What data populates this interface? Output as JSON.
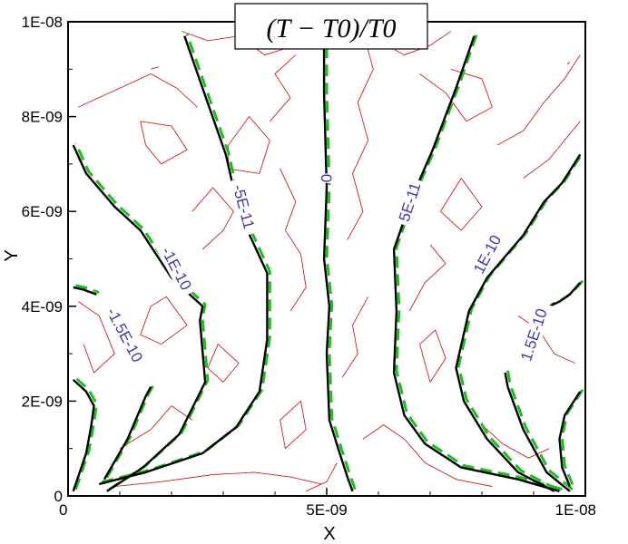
{
  "chart_data": {
    "type": "contour",
    "title": "(T − T0)/T0",
    "xlabel": "X",
    "ylabel": "Y",
    "xlim": [
      0,
      1e-08
    ],
    "ylim": [
      0,
      1e-08
    ],
    "x_ticks": [
      "0",
      "5E-09",
      "1E-08"
    ],
    "y_ticks": [
      "0",
      "2E-09",
      "4E-09",
      "6E-09",
      "8E-09",
      "1E-08"
    ],
    "grid": false,
    "series": [
      {
        "style": "black-solid",
        "color": "#000000"
      },
      {
        "style": "green-dashed",
        "color": "#22bb22"
      },
      {
        "style": "red-thin",
        "color": "#cc2020"
      }
    ],
    "contour_labels": [
      {
        "text": "-1.5E-10",
        "x": 1.1e-09,
        "y": 3.4e-09,
        "angle": 62
      },
      {
        "text": "-1E-10",
        "x": 2.1e-09,
        "y": 4.8e-09,
        "angle": 62
      },
      {
        "text": "-5E-11",
        "x": 3.4e-09,
        "y": 6.1e-09,
        "angle": 75
      },
      {
        "text": "0",
        "x": 5e-09,
        "y": 6.7e-09,
        "angle": 90
      },
      {
        "text": "5E-11",
        "x": 6.6e-09,
        "y": 6.2e-09,
        "angle": -72
      },
      {
        "text": "1E-10",
        "x": 8.1e-09,
        "y": 5.1e-09,
        "angle": -62
      },
      {
        "text": "1.5E-10",
        "x": 9e-09,
        "y": 3.4e-09,
        "angle": -72
      }
    ],
    "contours": [
      {
        "level": "-1.5E-10",
        "points": [
          [
            1e-10,
            1e-10
          ],
          [
            3.5e-10,
            9e-10
          ],
          [
            4.5e-10,
            1.5e-09
          ],
          [
            5e-10,
            1.9e-09
          ],
          [
            3.5e-10,
            2.2e-09
          ],
          [
            1e-10,
            2.45e-09
          ]
        ]
      },
      {
        "level": "-1.5E-10",
        "points": [
          [
            7e-10,
            3.5e-10
          ],
          [
            1.15e-09,
            1.2e-09
          ],
          [
            1.5e-09,
            2.1e-09
          ],
          [
            1.6e-09,
            2.3e-09
          ]
        ]
      },
      {
        "level": "-1E-10",
        "points": [
          [
            7.5e-10,
            1e-10
          ],
          [
            1.45e-09,
            6e-10
          ],
          [
            2.15e-09,
            1.3e-09
          ],
          [
            2.65e-09,
            2.4e-09
          ],
          [
            2.55e-09,
            3.7e-09
          ],
          [
            2.6e-09,
            4e-09
          ],
          [
            2e-09,
            4.6e-09
          ],
          [
            1.4e-09,
            5.6e-09
          ],
          [
            9e-10,
            6.1e-09
          ],
          [
            3.5e-10,
            6.8e-09
          ],
          [
            1e-10,
            7.4e-09
          ]
        ]
      },
      {
        "level": "-1E-10",
        "points": [
          [
            1e-10,
            4.4e-09
          ],
          [
            3e-10,
            4.35e-09
          ],
          [
            5.5e-10,
            4.25e-09
          ]
        ]
      },
      {
        "level": "-5E-11",
        "points": [
          [
            6e-10,
            2.5e-10
          ],
          [
            1.5e-09,
            5e-10
          ],
          [
            2.6e-09,
            9e-10
          ],
          [
            3.25e-09,
            1.45e-09
          ],
          [
            3.7e-09,
            2.2e-09
          ],
          [
            3.85e-09,
            3.3e-09
          ],
          [
            3.85e-09,
            4.7e-09
          ],
          [
            3.3e-09,
            6e-09
          ],
          [
            3.05e-09,
            7.2e-09
          ],
          [
            2.6e-09,
            8.6e-09
          ],
          [
            2.25e-09,
            9.7e-09
          ]
        ]
      },
      {
        "level": "0",
        "points": [
          [
            5.5e-09,
            1e-10
          ],
          [
            5.4e-09,
            4e-10
          ],
          [
            5.25e-09,
            9e-10
          ],
          [
            5.05e-09,
            1.6e-09
          ],
          [
            5e-09,
            3e-09
          ],
          [
            5.05e-09,
            4e-09
          ],
          [
            4.95e-09,
            5e-09
          ],
          [
            5e-09,
            6.5e-09
          ],
          [
            4.95e-09,
            8.5e-09
          ],
          [
            4.95e-09,
            9.5e-09
          ]
        ]
      },
      {
        "level": "5E-11",
        "points": [
          [
            9.5e-09,
            1e-10
          ],
          [
            8.7e-09,
            3.5e-10
          ],
          [
            7.6e-09,
            6e-10
          ],
          [
            6.9e-09,
            1.1e-09
          ],
          [
            6.5e-09,
            1.7e-09
          ],
          [
            6.3e-09,
            2.6e-09
          ],
          [
            6.35e-09,
            3.9e-09
          ],
          [
            6.3e-09,
            5.2e-09
          ],
          [
            6.65e-09,
            6.3e-09
          ],
          [
            7.05e-09,
            7.3e-09
          ],
          [
            7.5e-09,
            8.6e-09
          ],
          [
            7.85e-09,
            9.7e-09
          ]
        ]
      },
      {
        "level": "1E-10",
        "points": [
          [
            9.4e-09,
            1e-10
          ],
          [
            8.7e-09,
            5e-10
          ],
          [
            8.1e-09,
            1.2e-09
          ],
          [
            7.65e-09,
            2e-09
          ],
          [
            7.5e-09,
            2.7e-09
          ],
          [
            7.75e-09,
            3.9e-09
          ],
          [
            8.1e-09,
            4.6e-09
          ],
          [
            8.8e-09,
            5.5e-09
          ],
          [
            9.2e-09,
            6.2e-09
          ],
          [
            9.55e-09,
            6.6e-09
          ],
          [
            9.9e-09,
            7.2e-09
          ]
        ]
      },
      {
        "level": "1E-10",
        "points": [
          [
            9.9e-09,
            4.5e-09
          ],
          [
            9.7e-09,
            4.25e-09
          ],
          [
            9.5e-09,
            4.1e-09
          ],
          [
            9.3e-09,
            4e-09
          ]
        ]
      },
      {
        "level": "1.5E-10",
        "points": [
          [
            9.7e-09,
            1e-10
          ],
          [
            9.25e-09,
            5e-10
          ],
          [
            8.8e-09,
            1.4e-09
          ],
          [
            8.5e-09,
            2.3e-09
          ],
          [
            8.45e-09,
            2.6e-09
          ]
        ]
      },
      {
        "level": "1.5E-10",
        "points": [
          [
            9.9e-09,
            2.2e-09
          ],
          [
            9.6e-09,
            1.7e-09
          ],
          [
            9.5e-09,
            1.2e-09
          ],
          [
            9.55e-09,
            6e-10
          ],
          [
            9.7e-09,
            2e-10
          ]
        ]
      }
    ],
    "noise": [
      {
        "points": [
          [
            2.2e-09,
            9.8e-09
          ],
          [
            2.7e-09,
            9.6e-09
          ],
          [
            3.3e-09,
            9.7e-09
          ],
          [
            3.8e-09,
            9.3e-09
          ],
          [
            4.4e-09,
            9.5e-09
          ]
        ]
      },
      {
        "points": [
          [
            2e-10,
            8.2e-09
          ],
          [
            8e-10,
            8.5e-09
          ],
          [
            1.6e-09,
            8.9e-09
          ],
          [
            2.1e-09,
            8.6e-09
          ],
          [
            2.5e-09,
            8.2e-09
          ]
        ]
      },
      {
        "points": [
          [
            1.4e-09,
            7.9e-09
          ],
          [
            2e-09,
            7.8e-09
          ],
          [
            2.3e-09,
            7.3e-09
          ],
          [
            1.8e-09,
            7e-09
          ],
          [
            1.5e-09,
            7.4e-09
          ],
          [
            1.4e-09,
            7.9e-09
          ]
        ]
      },
      {
        "points": [
          [
            3.1e-09,
            6.9e-09
          ],
          [
            3.7e-09,
            6.8e-09
          ],
          [
            3.9e-09,
            7.5e-09
          ],
          [
            3.5e-09,
            8e-09
          ],
          [
            3.1e-09,
            7.4e-09
          ],
          [
            3.1e-09,
            6.9e-09
          ]
        ]
      },
      {
        "points": [
          [
            2.6e-09,
            5.2e-09
          ],
          [
            3e-09,
            5.6e-09
          ],
          [
            3.2e-09,
            6e-09
          ],
          [
            2.8e-09,
            6.5e-09
          ],
          [
            2.4e-09,
            6e-09
          ]
        ]
      },
      {
        "points": [
          [
            1.9e-09,
            4.2e-09
          ],
          [
            2.3e-09,
            3.6e-09
          ],
          [
            1.8e-09,
            3.2e-09
          ],
          [
            1.4e-09,
            3.4e-09
          ],
          [
            1.6e-09,
            4e-09
          ],
          [
            1.9e-09,
            4.2e-09
          ]
        ]
      },
      {
        "points": [
          [
            2e-10,
            4.1e-09
          ],
          [
            6e-10,
            3.8e-09
          ],
          [
            9e-10,
            3e-09
          ],
          [
            5e-10,
            2.6e-09
          ],
          [
            3e-10,
            3.2e-09
          ]
        ]
      },
      {
        "points": [
          [
            2.9e-09,
            3.2e-09
          ],
          [
            3.3e-09,
            2.8e-09
          ],
          [
            3e-09,
            2.4e-09
          ],
          [
            2.7e-09,
            2.7e-09
          ],
          [
            2.9e-09,
            3.2e-09
          ]
        ]
      },
      {
        "points": [
          [
            1e-09,
            1e-09
          ],
          [
            1.6e-09,
            1.4e-09
          ],
          [
            2e-09,
            1.9e-09
          ],
          [
            2.4e-09,
            1.6e-09
          ]
        ]
      },
      {
        "points": [
          [
            9e-10,
            2e-10
          ],
          [
            1.8e-09,
            3e-10
          ],
          [
            2.8e-09,
            4.5e-10
          ],
          [
            3.6e-09,
            5e-10
          ],
          [
            4.3e-09,
            4e-10
          ],
          [
            4.9e-09,
            2.5e-10
          ]
        ]
      },
      {
        "points": [
          [
            4.2e-09,
            1e-09
          ],
          [
            4.6e-09,
            1.4e-09
          ],
          [
            4.5e-09,
            2e-09
          ],
          [
            4.1e-09,
            1.6e-09
          ],
          [
            4.2e-09,
            1e-09
          ]
        ]
      },
      {
        "points": [
          [
            4.3e-09,
            3.9e-09
          ],
          [
            4.6e-09,
            4.4e-09
          ],
          [
            4.5e-09,
            5.1e-09
          ],
          [
            4.2e-09,
            5.6e-09
          ],
          [
            4.4e-09,
            6.2e-09
          ],
          [
            4.1e-09,
            6.9e-09
          ]
        ]
      },
      {
        "points": [
          [
            3.9e-09,
            7.9e-09
          ],
          [
            4.3e-09,
            8.4e-09
          ],
          [
            4e-09,
            8.9e-09
          ],
          [
            4.4e-09,
            9.3e-09
          ]
        ]
      },
      {
        "points": [
          [
            5.4e-09,
            5.4e-09
          ],
          [
            5.7e-09,
            6e-09
          ],
          [
            5.5e-09,
            6.8e-09
          ],
          [
            5.8e-09,
            7.5e-09
          ],
          [
            5.6e-09,
            8.3e-09
          ],
          [
            5.9e-09,
            9e-09
          ],
          [
            5.7e-09,
            9.8e-09
          ]
        ]
      },
      {
        "points": [
          [
            5.3e-09,
            2.5e-09
          ],
          [
            5.6e-09,
            3e-09
          ],
          [
            5.5e-09,
            3.6e-09
          ],
          [
            5.8e-09,
            4.2e-09
          ]
        ]
      },
      {
        "points": [
          [
            6e-09,
            9.6e-09
          ],
          [
            6.5e-09,
            9.3e-09
          ],
          [
            7e-09,
            9.5e-09
          ],
          [
            7.4e-09,
            9.8e-09
          ]
        ]
      },
      {
        "points": [
          [
            6.8e-09,
            8.9e-09
          ],
          [
            7.3e-09,
            8.5e-09
          ],
          [
            7.7e-09,
            7.9e-09
          ],
          [
            8.2e-09,
            8.2e-09
          ],
          [
            8e-09,
            8.8e-09
          ],
          [
            7.4e-09,
            9e-09
          ]
        ]
      },
      {
        "points": [
          [
            7.2e-09,
            6e-09
          ],
          [
            7.6e-09,
            5.6e-09
          ],
          [
            8e-09,
            6.1e-09
          ],
          [
            7.6e-09,
            6.7e-09
          ],
          [
            7.2e-09,
            6e-09
          ]
        ]
      },
      {
        "points": [
          [
            8.3e-09,
            7.4e-09
          ],
          [
            8.8e-09,
            7.7e-09
          ],
          [
            9.2e-09,
            8.3e-09
          ],
          [
            9.6e-09,
            8.8e-09
          ],
          [
            9.9e-09,
            9.3e-09
          ]
        ]
      },
      {
        "points": [
          [
            8.8e-09,
            6.7e-09
          ],
          [
            9.3e-09,
            7.1e-09
          ],
          [
            9.9e-09,
            7.9e-09
          ]
        ]
      },
      {
        "points": [
          [
            6.6e-09,
            3.9e-09
          ],
          [
            6.9e-09,
            4.5e-09
          ],
          [
            7.3e-09,
            4.9e-09
          ],
          [
            7e-09,
            5.3e-09
          ]
        ]
      },
      {
        "points": [
          [
            7e-09,
            2.4e-09
          ],
          [
            7.3e-09,
            2.9e-09
          ],
          [
            7.1e-09,
            3.5e-09
          ],
          [
            6.8e-09,
            3.2e-09
          ],
          [
            7e-09,
            2.4e-09
          ]
        ]
      },
      {
        "points": [
          [
            8.7e-09,
            3.8e-09
          ],
          [
            9.1e-09,
            3.5e-09
          ],
          [
            9.4e-09,
            3e-09
          ],
          [
            9.8e-09,
            2.8e-09
          ]
        ]
      },
      {
        "points": [
          [
            5.7e-09,
            1.2e-09
          ],
          [
            6.1e-09,
            1.5e-09
          ],
          [
            6.5e-09,
            1.2e-09
          ],
          [
            6.9e-09,
            7e-10
          ],
          [
            7.5e-09,
            3.5e-10
          ],
          [
            8.2e-09,
            2e-10
          ]
        ]
      },
      {
        "points": [
          [
            8e-09,
            1.5e-09
          ],
          [
            8.4e-09,
            1.1e-09
          ],
          [
            8.9e-09,
            8e-10
          ],
          [
            9.3e-09,
            1e-09
          ]
        ]
      },
      {
        "points": [
          [
            4.6e-09,
            1e-10
          ],
          [
            5e-09,
            3e-10
          ],
          [
            5.2e-09,
            7e-10
          ]
        ]
      },
      {
        "points": [
          [
            1.6e-09,
            9e-09
          ],
          [
            1.75e-09,
            9.05e-09
          ]
        ]
      },
      {
        "points": [
          [
            9.65e-09,
            9.1e-09
          ],
          [
            9.7e-09,
            9.15e-09
          ]
        ]
      }
    ]
  }
}
